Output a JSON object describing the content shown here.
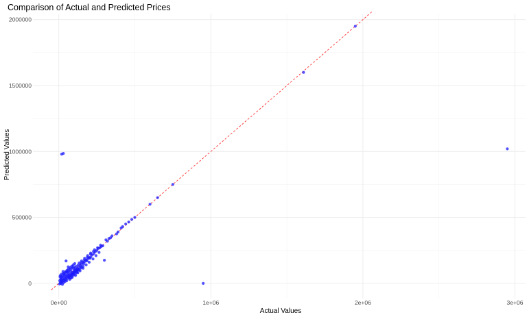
{
  "chart_data": {
    "type": "scatter",
    "title": "Comparison of Actual and Predicted Prices",
    "xlabel": "Actual Values",
    "ylabel": "Predicted Values",
    "xlim": [
      -170000,
      3070000
    ],
    "ylim": [
      -115000,
      2045000
    ],
    "x_ticks": [
      {
        "value": 0,
        "label": "0e+00"
      },
      {
        "value": 1000000,
        "label": "1e+06"
      },
      {
        "value": 2000000,
        "label": "2e+06"
      },
      {
        "value": 3000000,
        "label": "3e+06"
      }
    ],
    "y_ticks": [
      {
        "value": 0,
        "label": "0"
      },
      {
        "value": 500000,
        "label": "500000"
      },
      {
        "value": 1000000,
        "label": "1000000"
      },
      {
        "value": 1500000,
        "label": "1500000"
      },
      {
        "value": 2000000,
        "label": "2000000"
      }
    ],
    "grid": true,
    "point_color": "#1a1aff",
    "reference_line": {
      "style": "dashed",
      "color": "#ff3333",
      "slope": 1,
      "intercept": 0
    },
    "points": [
      [
        950000,
        0
      ],
      [
        19000,
        980000
      ],
      [
        30000,
        985000
      ],
      [
        2950000,
        1020000
      ],
      [
        1950000,
        1950000
      ],
      [
        1610000,
        1600000
      ],
      [
        750000,
        750000
      ],
      [
        650000,
        650000
      ],
      [
        600000,
        600000
      ],
      [
        500000,
        500000
      ],
      [
        480000,
        485000
      ],
      [
        460000,
        465000
      ],
      [
        440000,
        450000
      ],
      [
        420000,
        430000
      ],
      [
        390000,
        390000
      ],
      [
        340000,
        345000
      ],
      [
        320000,
        320000
      ],
      [
        300000,
        175000
      ],
      [
        290000,
        285000
      ],
      [
        280000,
        280000
      ],
      [
        270000,
        270000
      ],
      [
        260000,
        265000
      ],
      [
        250000,
        250000
      ],
      [
        240000,
        240000
      ],
      [
        230000,
        225000
      ],
      [
        220000,
        215000
      ],
      [
        210000,
        200000
      ],
      [
        200000,
        195000
      ],
      [
        190000,
        185000
      ],
      [
        180000,
        175000
      ],
      [
        170000,
        165000
      ],
      [
        160000,
        160000
      ],
      [
        150000,
        145000
      ],
      [
        140000,
        135000
      ],
      [
        130000,
        120000
      ],
      [
        120000,
        110000
      ],
      [
        110000,
        100000
      ],
      [
        100000,
        95000
      ],
      [
        90000,
        85000
      ],
      [
        80000,
        75000
      ],
      [
        70000,
        65000
      ],
      [
        60000,
        55000
      ],
      [
        50000,
        45000
      ],
      [
        40000,
        35000
      ],
      [
        30000,
        25000
      ],
      [
        20000,
        15000
      ],
      [
        10000,
        5000
      ],
      [
        5000,
        -5000
      ],
      [
        15000,
        40000
      ],
      [
        25000,
        55000
      ],
      [
        35000,
        70000
      ],
      [
        45000,
        90000
      ],
      [
        55000,
        100000
      ],
      [
        65000,
        110000
      ],
      [
        75000,
        120000
      ],
      [
        85000,
        130000
      ],
      [
        95000,
        140000
      ],
      [
        105000,
        150000
      ],
      [
        48000,
        170000
      ],
      [
        62000,
        125000
      ],
      [
        28000,
        90000
      ],
      [
        38000,
        60000
      ],
      [
        18000,
        70000
      ],
      [
        12000,
        30000
      ],
      [
        8000,
        50000
      ],
      [
        22000,
        10000
      ],
      [
        32000,
        5000
      ],
      [
        42000,
        15000
      ],
      [
        52000,
        20000
      ],
      [
        72000,
        30000
      ],
      [
        88000,
        45000
      ],
      [
        110000,
        60000
      ],
      [
        125000,
        80000
      ],
      [
        140000,
        95000
      ],
      [
        160000,
        115000
      ],
      [
        180000,
        140000
      ],
      [
        200000,
        160000
      ],
      [
        225000,
        185000
      ],
      [
        245000,
        210000
      ],
      [
        265000,
        235000
      ],
      [
        150000,
        170000
      ],
      [
        170000,
        190000
      ],
      [
        190000,
        210000
      ],
      [
        210000,
        230000
      ],
      [
        135000,
        155000
      ],
      [
        115000,
        130000
      ],
      [
        98000,
        112000
      ],
      [
        78000,
        95000
      ],
      [
        58000,
        78000
      ],
      [
        68000,
        40000
      ],
      [
        82000,
        60000
      ],
      [
        92000,
        70000
      ],
      [
        102000,
        80000
      ],
      [
        118000,
        90000
      ],
      [
        128000,
        105000
      ],
      [
        145000,
        125000
      ],
      [
        165000,
        150000
      ],
      [
        185000,
        170000
      ],
      [
        205000,
        190000
      ],
      [
        14000,
        0
      ],
      [
        24000,
        -8000
      ],
      [
        34000,
        20000
      ],
      [
        44000,
        28000
      ],
      [
        54000,
        36000
      ],
      [
        64000,
        48000
      ],
      [
        74000,
        58000
      ],
      [
        84000,
        68000
      ],
      [
        94000,
        78000
      ],
      [
        104000,
        88000
      ],
      [
        114000,
        98000
      ],
      [
        124000,
        108000
      ],
      [
        6000,
        20000
      ],
      [
        16000,
        25000
      ],
      [
        26000,
        35000
      ],
      [
        36000,
        45000
      ],
      [
        46000,
        60000
      ],
      [
        56000,
        65000
      ],
      [
        66000,
        85000
      ],
      [
        76000,
        105000
      ],
      [
        86000,
        115000
      ],
      [
        96000,
        125000
      ],
      [
        108000,
        118000
      ],
      [
        128000,
        140000
      ],
      [
        148000,
        158000
      ],
      [
        168000,
        178000
      ],
      [
        188000,
        198000
      ],
      [
        208000,
        222000
      ],
      [
        228000,
        242000
      ],
      [
        235000,
        255000
      ],
      [
        255000,
        270000
      ],
      [
        275000,
        290000
      ],
      [
        310000,
        330000
      ],
      [
        330000,
        340000
      ],
      [
        350000,
        360000
      ],
      [
        380000,
        375000
      ],
      [
        410000,
        420000
      ],
      [
        60000,
        95000
      ],
      [
        50000,
        85000
      ],
      [
        40000,
        80000
      ],
      [
        30000,
        75000
      ],
      [
        20000,
        50000
      ],
      [
        10000,
        60000
      ],
      [
        70000,
        50000
      ],
      [
        80000,
        40000
      ],
      [
        90000,
        55000
      ],
      [
        100000,
        65000
      ],
      [
        110000,
        75000
      ],
      [
        120000,
        85000
      ],
      [
        130000,
        100000
      ],
      [
        140000,
        110000
      ],
      [
        150000,
        120000
      ],
      [
        160000,
        130000
      ]
    ]
  }
}
